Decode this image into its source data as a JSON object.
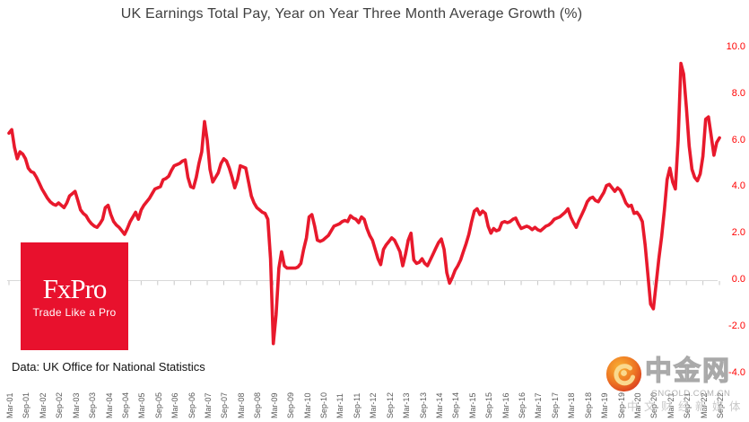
{
  "chart": {
    "title": "UK Earnings Total Pay, Year on Year Three Month Average Growth (%)",
    "source_note": "Data: UK Office for National Statistics"
  },
  "branding": {
    "logo_text": "FxPro",
    "tagline": "Trade Like a Pro",
    "brand_color": "#e8112d"
  },
  "watermark": {
    "site_name": "中金网",
    "domain": "CNGOLD.COM.CN",
    "tagline": "中文财经新媒体"
  },
  "chart_data": {
    "type": "line",
    "title": "UK Earnings Total Pay, Year on Year Three Month Average Growth (%)",
    "xlabel": "",
    "ylabel": "",
    "gridlines": "none (zero axis line with down ticks only)",
    "x_axis": {
      "label_rotation": -90,
      "ticks": [
        "Mar-01",
        "Sep-01",
        "Mar-02",
        "Sep-02",
        "Mar-03",
        "Sep-03",
        "Mar-04",
        "Sep-04",
        "Mar-05",
        "Sep-05",
        "Mar-06",
        "Sep-06",
        "Mar-07",
        "Sep-07",
        "Mar-08",
        "Sep-08",
        "Mar-09",
        "Sep-09",
        "Mar-10",
        "Sep-10",
        "Mar-11",
        "Sep-11",
        "Mar-12",
        "Sep-12",
        "Mar-13",
        "Sep-13",
        "Mar-14",
        "Sep-14",
        "Mar-15",
        "Sep-15",
        "Mar-16",
        "Sep-16",
        "Mar-17",
        "Sep-17",
        "Mar-18",
        "Sep-18",
        "Mar-19",
        "Sep-19",
        "Mar-20",
        "Sep-20",
        "Mar-21",
        "Sep-21",
        "Mar-22",
        "Sep-22"
      ]
    },
    "y_axis": {
      "side": "right",
      "range": [
        -4.0,
        10.0
      ],
      "tick_color": "#ff0000",
      "ticks": [
        "10.0",
        "8.0",
        "6.0",
        "4.0",
        "2.0",
        "0.0",
        "-2.0",
        "-4.0"
      ]
    },
    "series": [
      {
        "name": "UK total pay YoY 3-month average growth (%)",
        "color": "#e8192c",
        "points": [
          [
            "2001-03",
            6.3
          ],
          [
            "2001-04",
            6.45
          ],
          [
            "2001-05",
            5.7
          ],
          [
            "2001-06",
            5.2
          ],
          [
            "2001-07",
            5.5
          ],
          [
            "2001-08",
            5.4
          ],
          [
            "2001-09",
            5.2
          ],
          [
            "2001-10",
            4.8
          ],
          [
            "2001-11",
            4.65
          ],
          [
            "2001-12",
            4.6
          ],
          [
            "2002-01",
            4.4
          ],
          [
            "2002-02",
            4.15
          ],
          [
            "2002-03",
            3.9
          ],
          [
            "2002-04",
            3.7
          ],
          [
            "2002-05",
            3.5
          ],
          [
            "2002-06",
            3.35
          ],
          [
            "2002-07",
            3.25
          ],
          [
            "2002-08",
            3.2
          ],
          [
            "2002-09",
            3.3
          ],
          [
            "2002-10",
            3.2
          ],
          [
            "2002-11",
            3.1
          ],
          [
            "2002-12",
            3.3
          ],
          [
            "2003-01",
            3.6
          ],
          [
            "2003-02",
            3.7
          ],
          [
            "2003-03",
            3.8
          ],
          [
            "2003-04",
            3.4
          ],
          [
            "2003-05",
            3.0
          ],
          [
            "2003-06",
            2.85
          ],
          [
            "2003-07",
            2.75
          ],
          [
            "2003-08",
            2.55
          ],
          [
            "2003-09",
            2.4
          ],
          [
            "2003-10",
            2.3
          ],
          [
            "2003-11",
            2.25
          ],
          [
            "2003-12",
            2.4
          ],
          [
            "2004-01",
            2.6
          ],
          [
            "2004-02",
            3.1
          ],
          [
            "2004-03",
            3.2
          ],
          [
            "2004-04",
            2.8
          ],
          [
            "2004-05",
            2.5
          ],
          [
            "2004-06",
            2.35
          ],
          [
            "2004-07",
            2.25
          ],
          [
            "2004-08",
            2.1
          ],
          [
            "2004-09",
            1.95
          ],
          [
            "2004-10",
            2.2
          ],
          [
            "2004-11",
            2.5
          ],
          [
            "2004-12",
            2.7
          ],
          [
            "2005-01",
            2.9
          ],
          [
            "2005-02",
            2.6
          ],
          [
            "2005-03",
            3.0
          ],
          [
            "2005-04",
            3.2
          ],
          [
            "2005-05",
            3.35
          ],
          [
            "2005-06",
            3.5
          ],
          [
            "2005-07",
            3.7
          ],
          [
            "2005-08",
            3.9
          ],
          [
            "2005-09",
            3.95
          ],
          [
            "2005-10",
            4.0
          ],
          [
            "2005-11",
            4.3
          ],
          [
            "2005-12",
            4.35
          ],
          [
            "2006-01",
            4.45
          ],
          [
            "2006-02",
            4.7
          ],
          [
            "2006-03",
            4.9
          ],
          [
            "2006-04",
            4.95
          ],
          [
            "2006-05",
            5.0
          ],
          [
            "2006-06",
            5.1
          ],
          [
            "2006-07",
            5.15
          ],
          [
            "2006-08",
            4.4
          ],
          [
            "2006-09",
            4.0
          ],
          [
            "2006-10",
            3.95
          ],
          [
            "2006-11",
            4.4
          ],
          [
            "2006-12",
            5.0
          ],
          [
            "2007-01",
            5.5
          ],
          [
            "2007-02",
            6.8
          ],
          [
            "2007-03",
            6.0
          ],
          [
            "2007-04",
            4.75
          ],
          [
            "2007-05",
            4.2
          ],
          [
            "2007-06",
            4.4
          ],
          [
            "2007-07",
            4.6
          ],
          [
            "2007-08",
            5.0
          ],
          [
            "2007-09",
            5.2
          ],
          [
            "2007-10",
            5.1
          ],
          [
            "2007-11",
            4.8
          ],
          [
            "2007-12",
            4.4
          ],
          [
            "2008-01",
            3.95
          ],
          [
            "2008-02",
            4.3
          ],
          [
            "2008-03",
            4.9
          ],
          [
            "2008-04",
            4.85
          ],
          [
            "2008-05",
            4.8
          ],
          [
            "2008-06",
            4.2
          ],
          [
            "2008-07",
            3.6
          ],
          [
            "2008-08",
            3.3
          ],
          [
            "2008-09",
            3.1
          ],
          [
            "2008-10",
            3.0
          ],
          [
            "2008-11",
            2.9
          ],
          [
            "2008-12",
            2.85
          ],
          [
            "2009-01",
            2.6
          ],
          [
            "2009-02",
            0.9
          ],
          [
            "2009-03",
            -2.75
          ],
          [
            "2009-04",
            -1.5
          ],
          [
            "2009-05",
            0.5
          ],
          [
            "2009-06",
            1.2
          ],
          [
            "2009-07",
            0.6
          ],
          [
            "2009-08",
            0.5
          ],
          [
            "2009-09",
            0.5
          ],
          [
            "2009-10",
            0.5
          ],
          [
            "2009-11",
            0.5
          ],
          [
            "2009-12",
            0.55
          ],
          [
            "2010-01",
            0.7
          ],
          [
            "2010-02",
            1.3
          ],
          [
            "2010-03",
            1.8
          ],
          [
            "2010-04",
            2.7
          ],
          [
            "2010-05",
            2.8
          ],
          [
            "2010-06",
            2.3
          ],
          [
            "2010-07",
            1.7
          ],
          [
            "2010-08",
            1.65
          ],
          [
            "2010-09",
            1.7
          ],
          [
            "2010-10",
            1.8
          ],
          [
            "2010-11",
            1.9
          ],
          [
            "2010-12",
            2.1
          ],
          [
            "2011-01",
            2.3
          ],
          [
            "2011-02",
            2.35
          ],
          [
            "2011-03",
            2.4
          ],
          [
            "2011-04",
            2.5
          ],
          [
            "2011-05",
            2.55
          ],
          [
            "2011-06",
            2.5
          ],
          [
            "2011-07",
            2.75
          ],
          [
            "2011-08",
            2.65
          ],
          [
            "2011-09",
            2.6
          ],
          [
            "2011-10",
            2.45
          ],
          [
            "2011-11",
            2.7
          ],
          [
            "2011-12",
            2.6
          ],
          [
            "2012-01",
            2.2
          ],
          [
            "2012-02",
            1.9
          ],
          [
            "2012-03",
            1.7
          ],
          [
            "2012-04",
            1.3
          ],
          [
            "2012-05",
            0.9
          ],
          [
            "2012-06",
            0.65
          ],
          [
            "2012-07",
            1.3
          ],
          [
            "2012-08",
            1.5
          ],
          [
            "2012-09",
            1.65
          ],
          [
            "2012-10",
            1.8
          ],
          [
            "2012-11",
            1.7
          ],
          [
            "2012-12",
            1.45
          ],
          [
            "2013-01",
            1.2
          ],
          [
            "2013-02",
            0.6
          ],
          [
            "2013-03",
            1.1
          ],
          [
            "2013-04",
            1.7
          ],
          [
            "2013-05",
            2.0
          ],
          [
            "2013-06",
            0.85
          ],
          [
            "2013-07",
            0.7
          ],
          [
            "2013-08",
            0.75
          ],
          [
            "2013-09",
            0.9
          ],
          [
            "2013-10",
            0.7
          ],
          [
            "2013-11",
            0.6
          ],
          [
            "2013-12",
            0.85
          ],
          [
            "2014-01",
            1.1
          ],
          [
            "2014-02",
            1.35
          ],
          [
            "2014-03",
            1.6
          ],
          [
            "2014-04",
            1.75
          ],
          [
            "2014-05",
            1.3
          ],
          [
            "2014-06",
            0.3
          ],
          [
            "2014-07",
            -0.15
          ],
          [
            "2014-08",
            0.1
          ],
          [
            "2014-09",
            0.4
          ],
          [
            "2014-10",
            0.6
          ],
          [
            "2014-11",
            0.85
          ],
          [
            "2014-12",
            1.2
          ],
          [
            "2015-01",
            1.55
          ],
          [
            "2015-02",
            1.95
          ],
          [
            "2015-03",
            2.5
          ],
          [
            "2015-04",
            2.95
          ],
          [
            "2015-05",
            3.05
          ],
          [
            "2015-06",
            2.8
          ],
          [
            "2015-07",
            2.95
          ],
          [
            "2015-08",
            2.85
          ],
          [
            "2015-09",
            2.3
          ],
          [
            "2015-10",
            2.0
          ],
          [
            "2015-11",
            2.2
          ],
          [
            "2015-12",
            2.1
          ],
          [
            "2016-01",
            2.15
          ],
          [
            "2016-02",
            2.45
          ],
          [
            "2016-03",
            2.5
          ],
          [
            "2016-04",
            2.45
          ],
          [
            "2016-05",
            2.5
          ],
          [
            "2016-06",
            2.6
          ],
          [
            "2016-07",
            2.65
          ],
          [
            "2016-08",
            2.4
          ],
          [
            "2016-09",
            2.2
          ],
          [
            "2016-10",
            2.25
          ],
          [
            "2016-11",
            2.3
          ],
          [
            "2016-12",
            2.25
          ],
          [
            "2017-01",
            2.15
          ],
          [
            "2017-02",
            2.25
          ],
          [
            "2017-03",
            2.15
          ],
          [
            "2017-04",
            2.1
          ],
          [
            "2017-05",
            2.2
          ],
          [
            "2017-06",
            2.3
          ],
          [
            "2017-07",
            2.35
          ],
          [
            "2017-08",
            2.45
          ],
          [
            "2017-09",
            2.6
          ],
          [
            "2017-10",
            2.65
          ],
          [
            "2017-11",
            2.7
          ],
          [
            "2017-12",
            2.8
          ],
          [
            "2018-01",
            2.9
          ],
          [
            "2018-02",
            3.05
          ],
          [
            "2018-03",
            2.7
          ],
          [
            "2018-04",
            2.45
          ],
          [
            "2018-05",
            2.25
          ],
          [
            "2018-06",
            2.55
          ],
          [
            "2018-07",
            2.8
          ],
          [
            "2018-08",
            3.05
          ],
          [
            "2018-09",
            3.35
          ],
          [
            "2018-10",
            3.5
          ],
          [
            "2018-11",
            3.55
          ],
          [
            "2018-12",
            3.4
          ],
          [
            "2019-01",
            3.35
          ],
          [
            "2019-02",
            3.55
          ],
          [
            "2019-03",
            3.75
          ],
          [
            "2019-04",
            4.05
          ],
          [
            "2019-05",
            4.1
          ],
          [
            "2019-06",
            3.95
          ],
          [
            "2019-07",
            3.8
          ],
          [
            "2019-08",
            3.95
          ],
          [
            "2019-09",
            3.85
          ],
          [
            "2019-10",
            3.6
          ],
          [
            "2019-11",
            3.3
          ],
          [
            "2019-12",
            3.15
          ],
          [
            "2020-01",
            3.2
          ],
          [
            "2020-02",
            2.85
          ],
          [
            "2020-03",
            2.9
          ],
          [
            "2020-04",
            2.75
          ],
          [
            "2020-05",
            2.5
          ],
          [
            "2020-06",
            1.5
          ],
          [
            "2020-07",
            0.25
          ],
          [
            "2020-08",
            -1.05
          ],
          [
            "2020-09",
            -1.25
          ],
          [
            "2020-10",
            -0.2
          ],
          [
            "2020-11",
            0.9
          ],
          [
            "2020-12",
            1.85
          ],
          [
            "2021-01",
            3.0
          ],
          [
            "2021-02",
            4.3
          ],
          [
            "2021-03",
            4.8
          ],
          [
            "2021-04",
            4.2
          ],
          [
            "2021-05",
            3.9
          ],
          [
            "2021-06",
            6.0
          ],
          [
            "2021-07",
            9.3
          ],
          [
            "2021-08",
            8.85
          ],
          [
            "2021-09",
            7.4
          ],
          [
            "2021-10",
            5.75
          ],
          [
            "2021-11",
            4.75
          ],
          [
            "2021-12",
            4.4
          ],
          [
            "2022-01",
            4.25
          ],
          [
            "2022-02",
            4.55
          ],
          [
            "2022-03",
            5.3
          ],
          [
            "2022-04",
            6.9
          ],
          [
            "2022-05",
            7.0
          ],
          [
            "2022-06",
            6.2
          ],
          [
            "2022-07",
            5.35
          ],
          [
            "2022-08",
            5.9
          ],
          [
            "2022-09",
            6.1
          ]
        ]
      }
    ]
  }
}
